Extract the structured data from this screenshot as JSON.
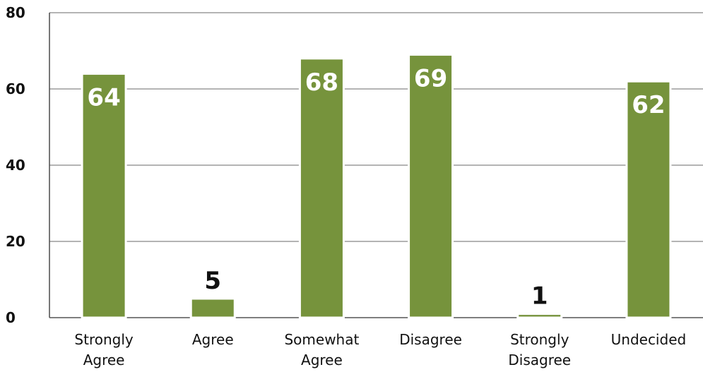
{
  "chart_data": {
    "type": "bar",
    "categories": [
      "Strongly Agree",
      "Agree",
      "Somewhat Agree",
      "Disagree",
      "Strongly Disagree",
      "Undecided"
    ],
    "values": [
      64,
      5,
      68,
      69,
      1,
      62
    ],
    "data_labels": [
      "64",
      "5",
      "68",
      "69",
      "1",
      "62"
    ],
    "ylim": [
      0,
      80
    ],
    "yticks": [
      0,
      20,
      40,
      60,
      80
    ],
    "grid": true,
    "legend": "none",
    "title": "",
    "xlabel": "",
    "ylabel": "",
    "colors": {
      "bar": "#76933c",
      "bar_edge": "#ffffff",
      "label_inside": "#ffffff",
      "label_outside": "#111111",
      "grid": "#888888",
      "axis": "#555555"
    }
  }
}
